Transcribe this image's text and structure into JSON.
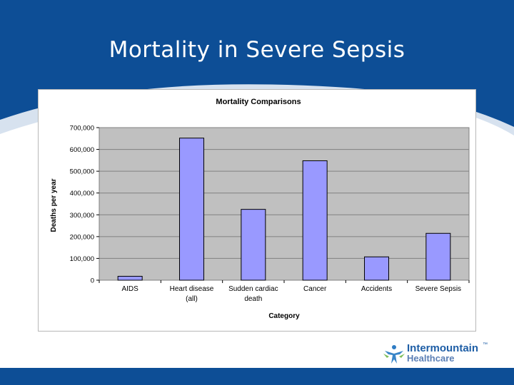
{
  "slide": {
    "title": "Mortality in Severe Sepsis"
  },
  "logo": {
    "name_line1": "Intermountain",
    "name_line2": "Healthcare",
    "trademark": "™"
  },
  "colors": {
    "header_blue": "#0d4e96",
    "bar_fill": "#9999ff",
    "plot_bg": "#c0c0c0"
  },
  "chart_data": {
    "type": "bar",
    "title": "Mortality Comparisons",
    "xlabel": "Category",
    "ylabel": "Deaths per year",
    "categories": [
      [
        "AIDS"
      ],
      [
        "Heart disease",
        "(all)"
      ],
      [
        "Sudden cardiac",
        "death"
      ],
      [
        "Cancer"
      ],
      [
        "Accidents"
      ],
      [
        "Severe Sepsis"
      ]
    ],
    "values": [
      18000,
      652000,
      325000,
      548000,
      107000,
      215000
    ],
    "ylim": [
      0,
      700000
    ],
    "yticks": [
      0,
      100000,
      200000,
      300000,
      400000,
      500000,
      600000,
      700000
    ],
    "ytick_labels": [
      "0",
      "100,000",
      "200,000",
      "300,000",
      "400,000",
      "500,000",
      "600,000",
      "700,000"
    ],
    "grid": true,
    "legend": "none"
  }
}
